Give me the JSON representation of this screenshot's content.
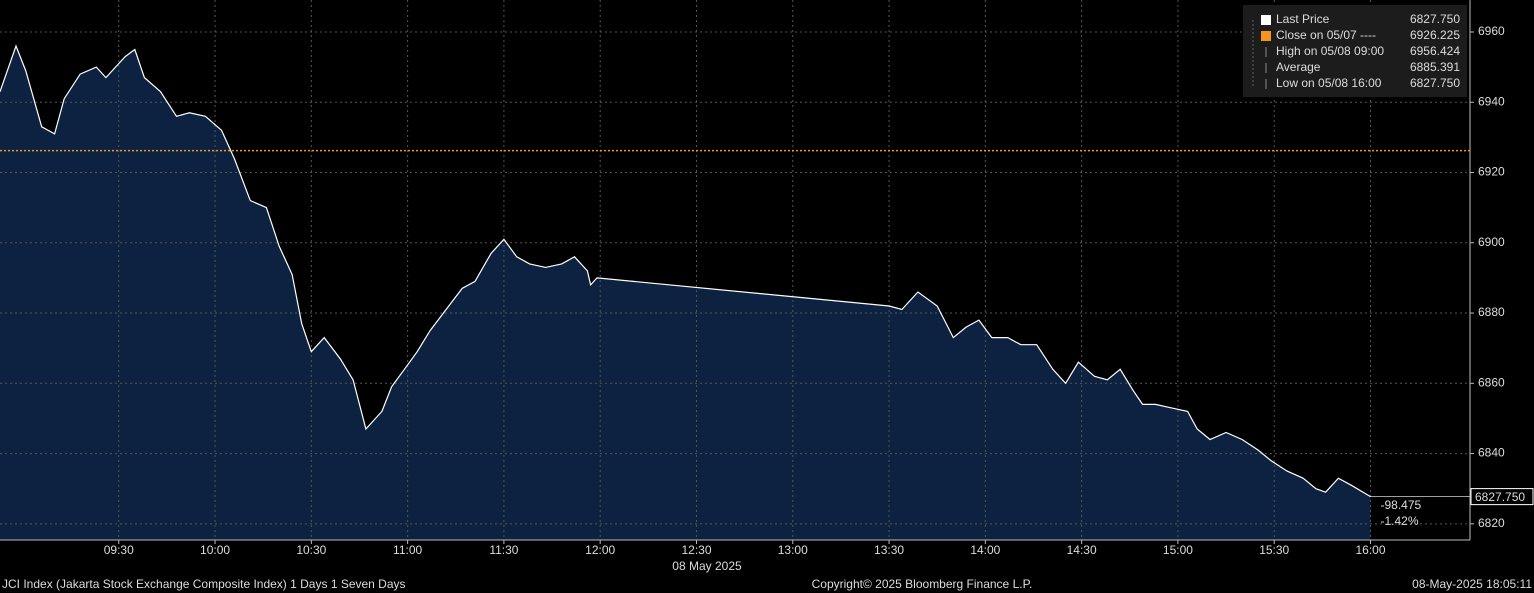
{
  "chart_data": {
    "type": "area",
    "x": [
      "08:53",
      "08:58",
      "09:01",
      "09:06",
      "09:10",
      "09:13",
      "09:18",
      "09:23",
      "09:26",
      "09:29",
      "09:32",
      "09:35",
      "09:38",
      "09:43",
      "09:48",
      "09:52",
      "09:57",
      "10:02",
      "10:06",
      "10:11",
      "10:16",
      "10:20",
      "10:24",
      "10:27",
      "10:30",
      "10:34",
      "10:39",
      "10:43",
      "10:47",
      "10:52",
      "10:55",
      "10:59",
      "11:03",
      "11:07",
      "11:12",
      "11:17",
      "11:21",
      "11:26",
      "11:30",
      "11:34",
      "11:38",
      "11:43",
      "11:48",
      "11:52",
      "11:56",
      "11:57",
      "11:59",
      "13:30",
      "13:34",
      "13:39",
      "13:45",
      "13:50",
      "13:54",
      "13:58",
      "14:02",
      "14:07",
      "14:11",
      "14:16",
      "14:21",
      "14:25",
      "14:29",
      "14:34",
      "14:38",
      "14:42",
      "14:46",
      "14:49",
      "14:53",
      "14:58",
      "15:03",
      "15:06",
      "15:10",
      "15:15",
      "15:20",
      "15:25",
      "15:29",
      "15:34",
      "15:39",
      "15:43",
      "15:46",
      "15:50",
      "15:54",
      "16:00"
    ],
    "values": [
      6943,
      6956,
      6949,
      6933,
      6931,
      6941,
      6948,
      6950,
      6947,
      6950,
      6953,
      6955,
      6947,
      6943,
      6936,
      6937,
      6936,
      6932,
      6924,
      6912,
      6910,
      6899,
      6891,
      6877,
      6869,
      6873,
      6867,
      6861,
      6847,
      6852,
      6859,
      6864,
      6869,
      6875,
      6881,
      6887,
      6889,
      6897,
      6901,
      6896,
      6894,
      6893,
      6894,
      6896,
      6892,
      6888,
      6890,
      6882,
      6881,
      6886,
      6882,
      6873,
      6876,
      6878,
      6873,
      6873,
      6871,
      6871,
      6864,
      6860,
      6866,
      6862,
      6861,
      6864,
      6858,
      6854,
      6854,
      6853,
      6852,
      6847,
      6844,
      6846,
      6844,
      6841,
      6838,
      6835,
      6833,
      6830,
      6829,
      6833,
      6831,
      6827.75
    ],
    "color": "#ffffff",
    "fill": "#0c2240",
    "xlim": [
      "08:53",
      "16:31"
    ],
    "ylim": [
      6815.4,
      6969.1
    ],
    "xticks": [
      "09:30",
      "10:00",
      "10:30",
      "11:00",
      "11:30",
      "12:00",
      "12:30",
      "13:00",
      "13:30",
      "14:00",
      "14:30",
      "15:00",
      "15:30",
      "16:00"
    ],
    "yticks": [
      6820,
      6840,
      6860,
      6880,
      6900,
      6920,
      6940,
      6960
    ],
    "grid": true,
    "x_label": "08 May 2025",
    "reference_line": {
      "value": 6926.225,
      "color": "#f7941d"
    },
    "legend": [
      {
        "name": "Last Price",
        "value_label": "6827.750",
        "color": "#ffffff"
      },
      {
        "name": "Close on 05/07 ----",
        "value_label": "6926.225",
        "color": "#f7941d"
      },
      {
        "name": "High on 05/08 09:00",
        "value_label": "6956.424",
        "color": "#888888"
      },
      {
        "name": "Average",
        "value_label": "6885.391",
        "color": "#888888"
      },
      {
        "name": "Low on 05/08 16:00",
        "value_label": "6827.750",
        "color": "#888888"
      }
    ],
    "last_label": "6827.750",
    "change_labels": [
      "-98.475",
      "-1.42%"
    ],
    "change_color": "#f7941d",
    "footer": {
      "left": "JCI Index (Jakarta Stock Exchange Composite Index) 1 Days 1 Seven Days",
      "center": "Copyright© 2025 Bloomberg Finance L.P.",
      "right": "08-May-2025 18:05:11"
    }
  }
}
